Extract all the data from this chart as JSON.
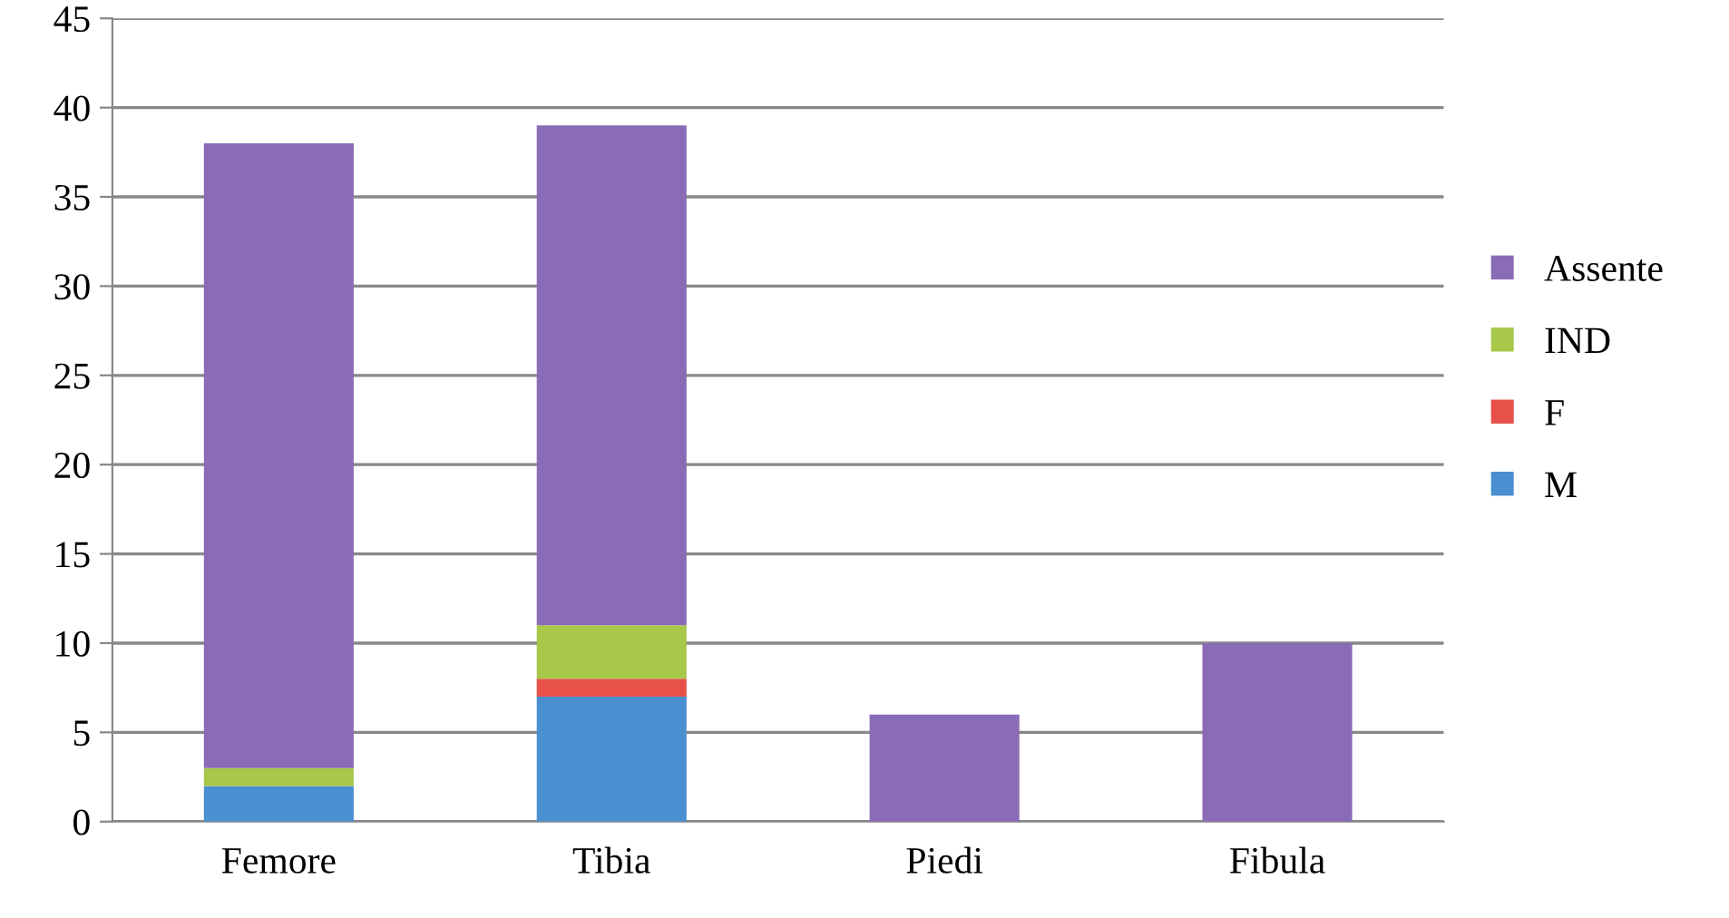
{
  "chart_data": {
    "type": "bar",
    "stacked": true,
    "categories": [
      "Femore",
      "Tibia",
      "Piedi",
      "Fibula"
    ],
    "series": [
      {
        "name": "M",
        "color": "#4a8fd0",
        "values": [
          2,
          7,
          0,
          0
        ]
      },
      {
        "name": "F",
        "color": "#e8504a",
        "values": [
          0,
          1,
          0,
          0
        ]
      },
      {
        "name": "IND",
        "color": "#a8c84a",
        "values": [
          1,
          3,
          0,
          0
        ]
      },
      {
        "name": "Assente",
        "color": "#8a6bb5",
        "values": [
          35,
          28,
          6,
          10
        ]
      }
    ],
    "ylim": [
      0,
      45
    ],
    "yticks": [
      0,
      5,
      10,
      15,
      20,
      25,
      30,
      35,
      40,
      45
    ],
    "grid": "y",
    "legend": "right"
  }
}
